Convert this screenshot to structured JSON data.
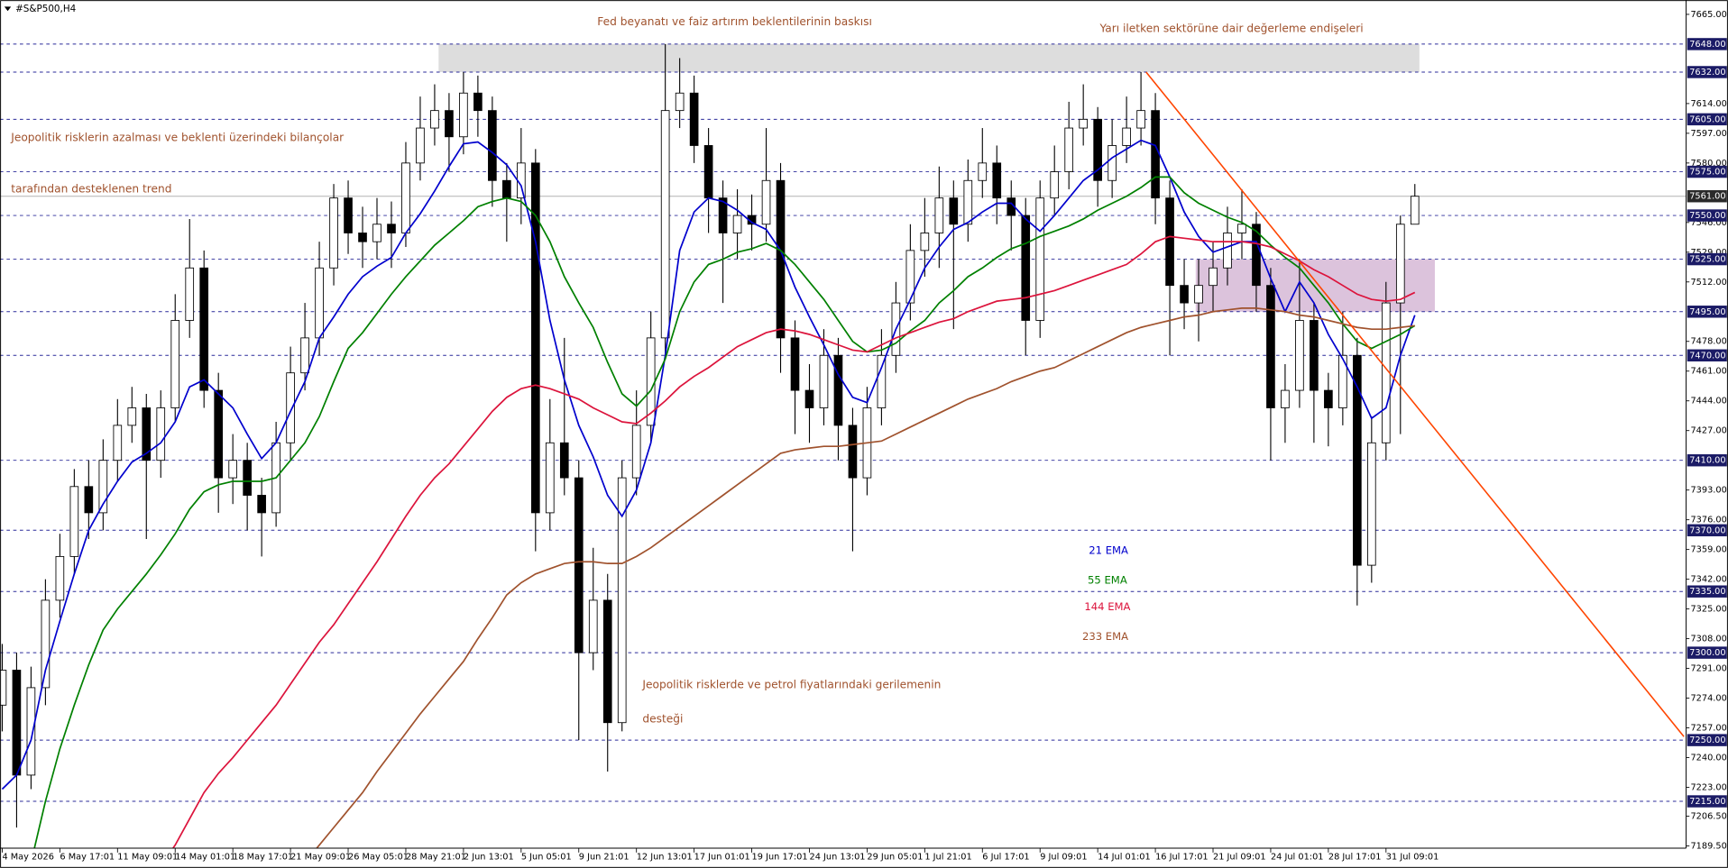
{
  "chart_data": {
    "type": "candlestick",
    "title": "#S&P500,H4",
    "categories": [
      "4 May 2026",
      null,
      null,
      null,
      "6 May 17:01",
      null,
      null,
      null,
      "11 May 09:01",
      null,
      null,
      null,
      "14 May 01:01",
      null,
      null,
      null,
      "18 May 17:01",
      null,
      null,
      null,
      "21 May 09:01",
      null,
      null,
      null,
      "26 May 05:01",
      null,
      null,
      null,
      "28 May 21:01",
      null,
      null,
      null,
      "2 Jun 13:01",
      null,
      null,
      null,
      "5 Jun 05:01",
      null,
      null,
      null,
      "9 Jun 21:01",
      null,
      null,
      null,
      "12 Jun 13:01",
      null,
      null,
      null,
      "17 Jun 01:01",
      null,
      null,
      null,
      "19 Jun 17:01",
      null,
      null,
      null,
      "24 Jun 13:01",
      null,
      null,
      null,
      "29 Jun 05:01",
      null,
      null,
      null,
      "1 Jul 21:01",
      null,
      null,
      null,
      "6 Jul 17:01",
      null,
      null,
      null,
      "9 Jul 09:01",
      null,
      null,
      null,
      "14 Jul 01:01",
      null,
      null,
      null,
      "16 Jul 17:01",
      null,
      null,
      null,
      "21 Jul 09:01",
      null,
      null,
      null,
      "24 Jul 01:01",
      null,
      null,
      null,
      "28 Jul 17:01",
      null,
      null,
      null,
      "31 Jul 09:01",
      null,
      null
    ],
    "open": [
      7270,
      7290,
      7230,
      7280,
      7330,
      7355,
      7395,
      7380,
      7410,
      7430,
      7440,
      7410,
      7440,
      7490,
      7520,
      7450,
      7400,
      7410,
      7390,
      7380,
      7420,
      7460,
      7480,
      7520,
      7560,
      7540,
      7535,
      7545,
      7540,
      7580,
      7600,
      7610,
      7595,
      7620,
      7610,
      7570,
      7560,
      7580,
      7380,
      7420,
      7400,
      7300,
      7330,
      7260,
      7400,
      7430,
      7480,
      7610,
      7620,
      7590,
      7560,
      7540,
      7550,
      7545,
      7570,
      7480,
      7450,
      7440,
      7470,
      7430,
      7400,
      7440,
      7470,
      7500,
      7530,
      7540,
      7560,
      7545,
      7570,
      7580,
      7560,
      7550,
      7490,
      7560,
      7575,
      7600,
      7605,
      7570,
      7590,
      7600,
      7610,
      7560,
      7510,
      7500,
      7510,
      7520,
      7540,
      7545,
      7510,
      7440,
      7450,
      7490,
      7450,
      7440,
      7470,
      7350,
      7420,
      7500,
      7545
    ],
    "high": [
      7305,
      7300,
      7292,
      7342,
      7368,
      7405,
      7410,
      7422,
      7445,
      7452,
      7448,
      7450,
      7505,
      7548,
      7530,
      7460,
      7425,
      7420,
      7400,
      7432,
      7475,
      7500,
      7535,
      7568,
      7570,
      7555,
      7560,
      7558,
      7592,
      7618,
      7625,
      7620,
      7632,
      7630,
      7618,
      7580,
      7600,
      7588,
      7445,
      7480,
      7410,
      7360,
      7345,
      7410,
      7450,
      7495,
      7648,
      7640,
      7630,
      7600,
      7570,
      7565,
      7562,
      7600,
      7580,
      7490,
      7465,
      7485,
      7480,
      7440,
      7452,
      7485,
      7512,
      7545,
      7560,
      7578,
      7570,
      7582,
      7600,
      7590,
      7570,
      7560,
      7570,
      7590,
      7615,
      7625,
      7612,
      7605,
      7618,
      7632,
      7620,
      7570,
      7525,
      7525,
      7535,
      7555,
      7565,
      7552,
      7520,
      7465,
      7525,
      7500,
      7460,
      7495,
      7480,
      7435,
      7512,
      7550,
      7568
    ],
    "low": [
      7255,
      7200,
      7222,
      7270,
      7320,
      7345,
      7365,
      7370,
      7398,
      7420,
      7365,
      7400,
      7432,
      7480,
      7440,
      7380,
      7385,
      7370,
      7355,
      7372,
      7410,
      7450,
      7470,
      7510,
      7528,
      7520,
      7525,
      7520,
      7532,
      7570,
      7590,
      7575,
      7585,
      7595,
      7555,
      7535,
      7545,
      7358,
      7370,
      7390,
      7250,
      7290,
      7232,
      7255,
      7390,
      7420,
      7470,
      7600,
      7580,
      7540,
      7500,
      7525,
      7530,
      7535,
      7460,
      7425,
      7420,
      7430,
      7410,
      7358,
      7390,
      7430,
      7460,
      7490,
      7515,
      7520,
      7485,
      7535,
      7560,
      7545,
      7530,
      7470,
      7480,
      7550,
      7565,
      7590,
      7555,
      7560,
      7580,
      7590,
      7545,
      7470,
      7485,
      7478,
      7495,
      7510,
      7525,
      7495,
      7410,
      7420,
      7440,
      7420,
      7418,
      7430,
      7327,
      7340,
      7410,
      7425,
      7548
    ],
    "close": [
      7290,
      7230,
      7280,
      7330,
      7355,
      7395,
      7380,
      7410,
      7430,
      7440,
      7410,
      7440,
      7490,
      7520,
      7450,
      7400,
      7410,
      7390,
      7380,
      7420,
      7460,
      7480,
      7520,
      7560,
      7540,
      7535,
      7545,
      7540,
      7580,
      7600,
      7610,
      7595,
      7620,
      7610,
      7570,
      7560,
      7580,
      7380,
      7420,
      7400,
      7300,
      7330,
      7260,
      7400,
      7430,
      7480,
      7610,
      7620,
      7590,
      7560,
      7540,
      7550,
      7545,
      7570,
      7480,
      7450,
      7440,
      7470,
      7430,
      7400,
      7440,
      7470,
      7500,
      7530,
      7540,
      7560,
      7545,
      7570,
      7580,
      7560,
      7550,
      7490,
      7560,
      7575,
      7600,
      7605,
      7570,
      7590,
      7600,
      7610,
      7560,
      7510,
      7500,
      7510,
      7520,
      7540,
      7545,
      7510,
      7440,
      7450,
      7490,
      7450,
      7440,
      7470,
      7350,
      7420,
      7500,
      7545,
      7561
    ],
    "series": [
      {
        "name": "21 EMA",
        "color": "#0000cd",
        "values": [
          7222,
          7230,
          7250,
          7290,
          7318,
          7345,
          7370,
          7385,
          7398,
          7409,
          7414,
          7420,
          7432,
          7452,
          7456,
          7448,
          7440,
          7425,
          7411,
          7420,
          7438,
          7455,
          7480,
          7492,
          7505,
          7515,
          7521,
          7526,
          7540,
          7551,
          7564,
          7578,
          7591,
          7592,
          7586,
          7579,
          7567,
          7535,
          7490,
          7456,
          7430,
          7412,
          7390,
          7378,
          7393,
          7420,
          7470,
          7530,
          7552,
          7560,
          7558,
          7553,
          7546,
          7542,
          7530,
          7509,
          7492,
          7476,
          7459,
          7446,
          7443,
          7463,
          7485,
          7502,
          7520,
          7532,
          7542,
          7546,
          7552,
          7557,
          7557,
          7548,
          7541,
          7550,
          7560,
          7570,
          7576,
          7583,
          7588,
          7593,
          7590,
          7572,
          7552,
          7538,
          7529,
          7532,
          7535,
          7535,
          7514,
          7495,
          7512,
          7500,
          7482,
          7468,
          7452,
          7434,
          7440,
          7470,
          7493
        ]
      },
      {
        "name": "55 EMA",
        "color": "#008000",
        "values": [
          null,
          null,
          7180,
          7215,
          7245,
          7270,
          7293,
          7313,
          7325,
          7335,
          7345,
          7356,
          7368,
          7382,
          7392,
          7396,
          7398,
          7398,
          7398,
          7400,
          7410,
          7420,
          7435,
          7455,
          7474,
          7483,
          7494,
          7505,
          7515,
          7524,
          7533,
          7540,
          7547,
          7555,
          7558,
          7560,
          7558,
          7550,
          7535,
          7515,
          7500,
          7486,
          7466,
          7448,
          7441,
          7450,
          7468,
          7495,
          7512,
          7522,
          7525,
          7529,
          7531,
          7534,
          7530,
          7522,
          7512,
          7502,
          7490,
          7478,
          7472,
          7473,
          7477,
          7484,
          7490,
          7500,
          7507,
          7515,
          7520,
          7526,
          7531,
          7534,
          7538,
          7541,
          7544,
          7548,
          7553,
          7557,
          7561,
          7566,
          7572,
          7572,
          7563,
          7557,
          7553,
          7549,
          7546,
          7541,
          7533,
          7526,
          7520,
          7510,
          7500,
          7488,
          7478,
          7474,
          7478,
          7482,
          7487
        ]
      },
      {
        "name": "144 EMA",
        "color": "#dc143c",
        "values": [
          null,
          null,
          null,
          null,
          null,
          null,
          null,
          null,
          null,
          null,
          null,
          7178,
          7190,
          7205,
          7220,
          7231,
          7240,
          7250,
          7260,
          7270,
          7282,
          7294,
          7306,
          7316,
          7328,
          7340,
          7352,
          7365,
          7378,
          7390,
          7400,
          7408,
          7418,
          7428,
          7438,
          7446,
          7451,
          7453,
          7451,
          7448,
          7445,
          7440,
          7436,
          7432,
          7431,
          7437,
          7444,
          7452,
          7458,
          7463,
          7469,
          7475,
          7479,
          7483,
          7485,
          7484,
          7482,
          7479,
          7476,
          7473,
          7472,
          7476,
          7480,
          7483,
          7486,
          7489,
          7491,
          7495,
          7498,
          7501,
          7502,
          7503,
          7505,
          7507,
          7510,
          7513,
          7516,
          7519,
          7522,
          7528,
          7535,
          7538,
          7537,
          7536,
          7535,
          7535,
          7535,
          7534,
          7532,
          7528,
          7524,
          7519,
          7515,
          7510,
          7505,
          7502,
          7501,
          7502,
          7506
        ]
      },
      {
        "name": "233 EMA",
        "color": "#a0522d",
        "values": [
          null,
          null,
          null,
          null,
          null,
          null,
          null,
          null,
          null,
          null,
          null,
          null,
          null,
          null,
          null,
          null,
          null,
          null,
          null,
          null,
          null,
          7180,
          7190,
          7200,
          7210,
          7220,
          7232,
          7243,
          7254,
          7265,
          7275,
          7285,
          7295,
          7308,
          7320,
          7333,
          7340,
          7345,
          7348,
          7351,
          7352,
          7352,
          7351,
          7351,
          7355,
          7360,
          7366,
          7372,
          7378,
          7384,
          7390,
          7396,
          7402,
          7408,
          7414,
          7416,
          7417,
          7418,
          7418,
          7419,
          7420,
          7421,
          7425,
          7429,
          7433,
          7437,
          7441,
          7445,
          7448,
          7451,
          7455,
          7458,
          7461,
          7463,
          7467,
          7471,
          7475,
          7479,
          7483,
          7486,
          7488,
          7490,
          7492,
          7493,
          7495,
          7496,
          7497,
          7497,
          7496,
          7495,
          7493,
          7492,
          7490,
          7488,
          7486,
          7485,
          7485,
          7486,
          7487
        ]
      }
    ],
    "ylim": [
      7189.5,
      7665
    ],
    "yticks": [
      {
        "value": 7665,
        "label": "7665.00"
      },
      {
        "value": 7614,
        "label": "7614.00"
      },
      {
        "value": 7597,
        "label": "7597.00"
      },
      {
        "value": 7580,
        "label": "7580.00"
      },
      {
        "value": 7546,
        "label": "7546.00"
      },
      {
        "value": 7529,
        "label": "7529.00"
      },
      {
        "value": 7512,
        "label": "7512.00"
      },
      {
        "value": 7478,
        "label": "7478.00"
      },
      {
        "value": 7461,
        "label": "7461.00"
      },
      {
        "value": 7444,
        "label": "7444.00"
      },
      {
        "value": 7427,
        "label": "7427.00"
      },
      {
        "value": 7393,
        "label": "7393.00"
      },
      {
        "value": 7376,
        "label": "7376.00"
      },
      {
        "value": 7359,
        "label": "7359.00"
      },
      {
        "value": 7342,
        "label": "7342.00"
      },
      {
        "value": 7325,
        "label": "7325.00"
      },
      {
        "value": 7308,
        "label": "7308.00"
      },
      {
        "value": 7291,
        "label": "7291.00"
      },
      {
        "value": 7274,
        "label": "7274.00"
      },
      {
        "value": 7257,
        "label": "7257.00"
      },
      {
        "value": 7240,
        "label": "7240.00"
      },
      {
        "value": 7223,
        "label": "7223.00"
      },
      {
        "value": 7206.5,
        "label": "7206.50"
      },
      {
        "value": 7189.5,
        "label": "7189.50"
      }
    ],
    "levels": [
      {
        "value": 7648,
        "label": "7648.00"
      },
      {
        "value": 7632,
        "label": "7632.00"
      },
      {
        "value": 7605,
        "label": "7605.00"
      },
      {
        "value": 7575,
        "label": "7575.00"
      },
      {
        "value": 7550,
        "label": "7550.00"
      },
      {
        "value": 7525,
        "label": "7525.00"
      },
      {
        "value": 7495,
        "label": "7495.00"
      },
      {
        "value": 7470,
        "label": "7470.00"
      },
      {
        "value": 7410,
        "label": "7410.00"
      },
      {
        "value": 7370,
        "label": "7370.00"
      },
      {
        "value": 7335,
        "label": "7335.00"
      },
      {
        "value": 7300,
        "label": "7300.00"
      },
      {
        "value": 7250,
        "label": "7250.00"
      },
      {
        "value": 7215,
        "label": "7215.00"
      }
    ],
    "level_color": "#2b2b9a",
    "current_price": {
      "value": 7561,
      "label": "7561.00"
    },
    "zones": [
      {
        "low": 7632,
        "high": 7648,
        "color": "#d9d9d9"
      },
      {
        "low": 7495,
        "high": 7525,
        "color": "#d8bcd8"
      }
    ],
    "trendline": {
      "start": 7632,
      "end": 7252,
      "color": "#ff4500"
    },
    "annotations": [
      "Fed beyanatı ve faiz artırım beklentilerinin baskısı",
      "Yarı iletken sektörüne dair değerleme endişeleri",
      "Jeopolitik risklerin azalması ve beklenti üzerindeki bilançolar",
      "tarafından desteklenen trend",
      "Jeopolitik risklerde ve petrol fiyatlarındaki gerilemenin",
      "desteği"
    ],
    "bull_color": "#ffffff",
    "bear_color": "#000000"
  }
}
